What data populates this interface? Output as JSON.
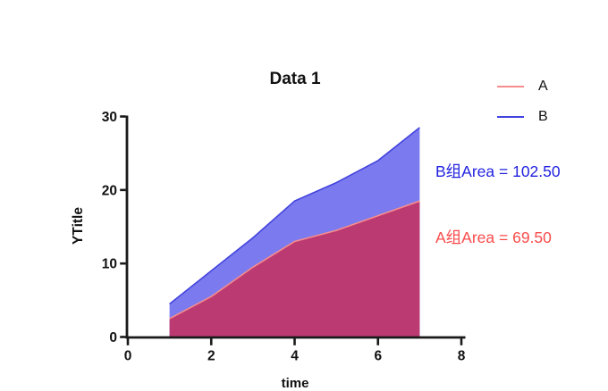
{
  "chart_data": {
    "type": "area",
    "title": "Data 1",
    "xlabel": "time",
    "ylabel": "YTitle",
    "x": [
      1,
      2,
      3,
      4,
      5,
      6,
      7
    ],
    "series": [
      {
        "name": "A",
        "values": [
          2.5,
          5.5,
          9.5,
          13,
          14.5,
          16.5,
          18.5
        ],
        "line_color": "#f68d8d",
        "fill_color": "#bc3a72"
      },
      {
        "name": "B",
        "values": [
          4.5,
          9,
          13.5,
          18.5,
          21,
          24,
          28.5
        ],
        "line_color": "#4343de",
        "fill_color": "#7b7bef"
      }
    ],
    "legend": [
      "A",
      "B"
    ],
    "legend_position": "top-right",
    "annotations": [
      {
        "text": "B组Area = 102.50",
        "color": "#2222e0"
      },
      {
        "text": "A组Area = 69.50",
        "color": "#f94b4b"
      }
    ],
    "xticks": [
      0,
      2,
      4,
      6,
      8
    ],
    "yticks": [
      0,
      10,
      20,
      30
    ],
    "xlim": [
      0,
      8
    ],
    "ylim": [
      0,
      30
    ],
    "grid": false,
    "axis_color": "#1a1a1a"
  }
}
